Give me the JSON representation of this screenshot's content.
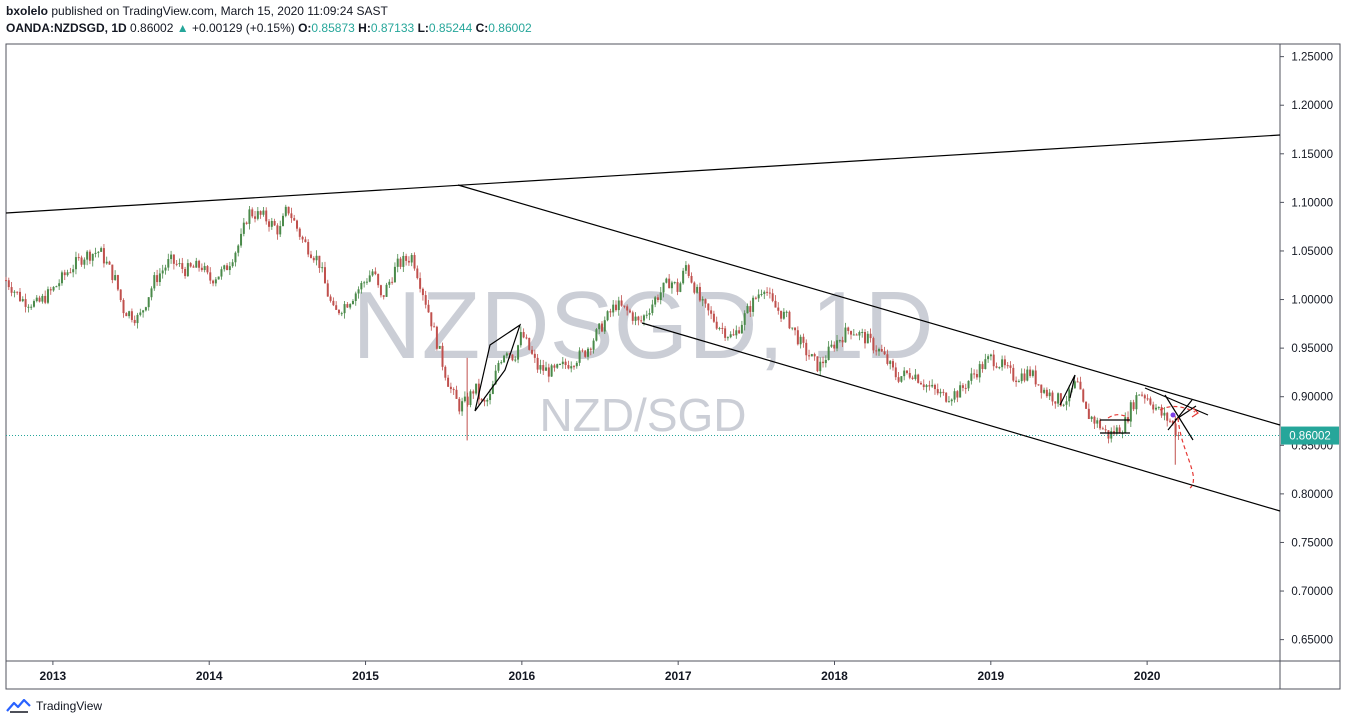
{
  "header": {
    "publisher": "bxolelo",
    "published_text": "published on TradingView.com, March 15, 2020 11:09:24 SAST",
    "symbol": "OANDA:NZDSGD, 1D",
    "last": "0.86002",
    "change": "+0.00129 (+0.15%)",
    "open_label": "O:",
    "open": "0.85873",
    "high_label": "H:",
    "high": "0.87133",
    "low_label": "L:",
    "low": "0.85244",
    "close_label": "C:",
    "close": "0.86002"
  },
  "watermark": {
    "title": "NZDSGD, 1D",
    "subtitle": "NZD/SGD"
  },
  "price_badge": "0.86002",
  "footer": {
    "brand": "TradingView"
  },
  "colors": {
    "up": "#26a69a",
    "down": "#ef5350",
    "candle_up": "#4a8a4a",
    "candle_down": "#c0504d",
    "watermark": "#c3c6cf",
    "trendline": "#000000",
    "projection": "#e53935"
  },
  "chart_data": {
    "type": "candlestick",
    "instrument": "NZD/SGD",
    "timeframe": "1D",
    "x_ticks": [
      "2013",
      "2014",
      "2015",
      "2016",
      "2017",
      "2018",
      "2019",
      "2020"
    ],
    "y_ticks": [
      "1.25000",
      "1.20000",
      "1.15000",
      "1.10000",
      "1.05000",
      "1.00000",
      "0.95000",
      "0.90000",
      "0.85000",
      "0.80000",
      "0.75000",
      "0.70000",
      "0.65000"
    ],
    "y_range": [
      0.628,
      1.263
    ],
    "x_range": [
      2012.7,
      2020.85
    ],
    "current_price": 0.86002,
    "price_path": [
      [
        2012.7,
        1.02
      ],
      [
        2012.8,
        1.0
      ],
      [
        2012.9,
        0.995
      ],
      [
        2013.0,
        1.01
      ],
      [
        2013.1,
        1.03
      ],
      [
        2013.2,
        1.045
      ],
      [
        2013.3,
        1.05
      ],
      [
        2013.4,
        1.02
      ],
      [
        2013.45,
        0.99
      ],
      [
        2013.55,
        0.98
      ],
      [
        2013.65,
        1.02
      ],
      [
        2013.75,
        1.04
      ],
      [
        2013.85,
        1.03
      ],
      [
        2013.95,
        1.035
      ],
      [
        2014.0,
        1.02
      ],
      [
        2014.1,
        1.03
      ],
      [
        2014.2,
        1.06
      ],
      [
        2014.25,
        1.09
      ],
      [
        2014.35,
        1.085
      ],
      [
        2014.45,
        1.07
      ],
      [
        2014.5,
        1.095
      ],
      [
        2014.6,
        1.06
      ],
      [
        2014.7,
        1.04
      ],
      [
        2014.75,
        1.01
      ],
      [
        2014.8,
        0.985
      ],
      [
        2014.9,
        1.0
      ],
      [
        2015.0,
        1.02
      ],
      [
        2015.05,
        1.03
      ],
      [
        2015.1,
        1.0
      ],
      [
        2015.2,
        1.035
      ],
      [
        2015.3,
        1.045
      ],
      [
        2015.4,
        0.99
      ],
      [
        2015.45,
        0.96
      ],
      [
        2015.5,
        0.93
      ],
      [
        2015.55,
        0.905
      ],
      [
        2015.6,
        0.89
      ],
      [
        2015.65,
        0.895
      ],
      [
        2015.7,
        0.91
      ],
      [
        2015.75,
        0.89
      ],
      [
        2015.8,
        0.9
      ],
      [
        2015.85,
        0.935
      ],
      [
        2015.9,
        0.95
      ],
      [
        2015.95,
        0.94
      ],
      [
        2016.0,
        0.965
      ],
      [
        2016.1,
        0.93
      ],
      [
        2016.2,
        0.925
      ],
      [
        2016.3,
        0.935
      ],
      [
        2016.4,
        0.945
      ],
      [
        2016.5,
        0.97
      ],
      [
        2016.6,
        0.995
      ],
      [
        2016.7,
        0.985
      ],
      [
        2016.75,
        0.975
      ],
      [
        2016.85,
        1.0
      ],
      [
        2016.95,
        1.02
      ],
      [
        2017.0,
        1.01
      ],
      [
        2017.05,
        1.035
      ],
      [
        2017.15,
        0.995
      ],
      [
        2017.25,
        0.975
      ],
      [
        2017.35,
        0.96
      ],
      [
        2017.45,
        0.99
      ],
      [
        2017.55,
        1.015
      ],
      [
        2017.6,
        0.995
      ],
      [
        2017.7,
        0.98
      ],
      [
        2017.8,
        0.95
      ],
      [
        2017.9,
        0.93
      ],
      [
        2018.0,
        0.955
      ],
      [
        2018.1,
        0.97
      ],
      [
        2018.2,
        0.96
      ],
      [
        2018.3,
        0.945
      ],
      [
        2018.4,
        0.92
      ],
      [
        2018.5,
        0.925
      ],
      [
        2018.6,
        0.91
      ],
      [
        2018.7,
        0.9
      ],
      [
        2018.8,
        0.905
      ],
      [
        2018.9,
        0.925
      ],
      [
        2019.0,
        0.94
      ],
      [
        2019.05,
        0.935
      ],
      [
        2019.15,
        0.92
      ],
      [
        2019.25,
        0.925
      ],
      [
        2019.35,
        0.905
      ],
      [
        2019.45,
        0.895
      ],
      [
        2019.5,
        0.9
      ],
      [
        2019.55,
        0.915
      ],
      [
        2019.6,
        0.885
      ],
      [
        2019.7,
        0.87
      ],
      [
        2019.75,
        0.86
      ],
      [
        2019.8,
        0.865
      ],
      [
        2019.85,
        0.87
      ],
      [
        2019.9,
        0.89
      ],
      [
        2019.95,
        0.905
      ],
      [
        2020.0,
        0.9
      ],
      [
        2020.05,
        0.89
      ],
      [
        2020.1,
        0.88
      ],
      [
        2020.15,
        0.875
      ],
      [
        2020.2,
        0.86
      ]
    ]
  }
}
